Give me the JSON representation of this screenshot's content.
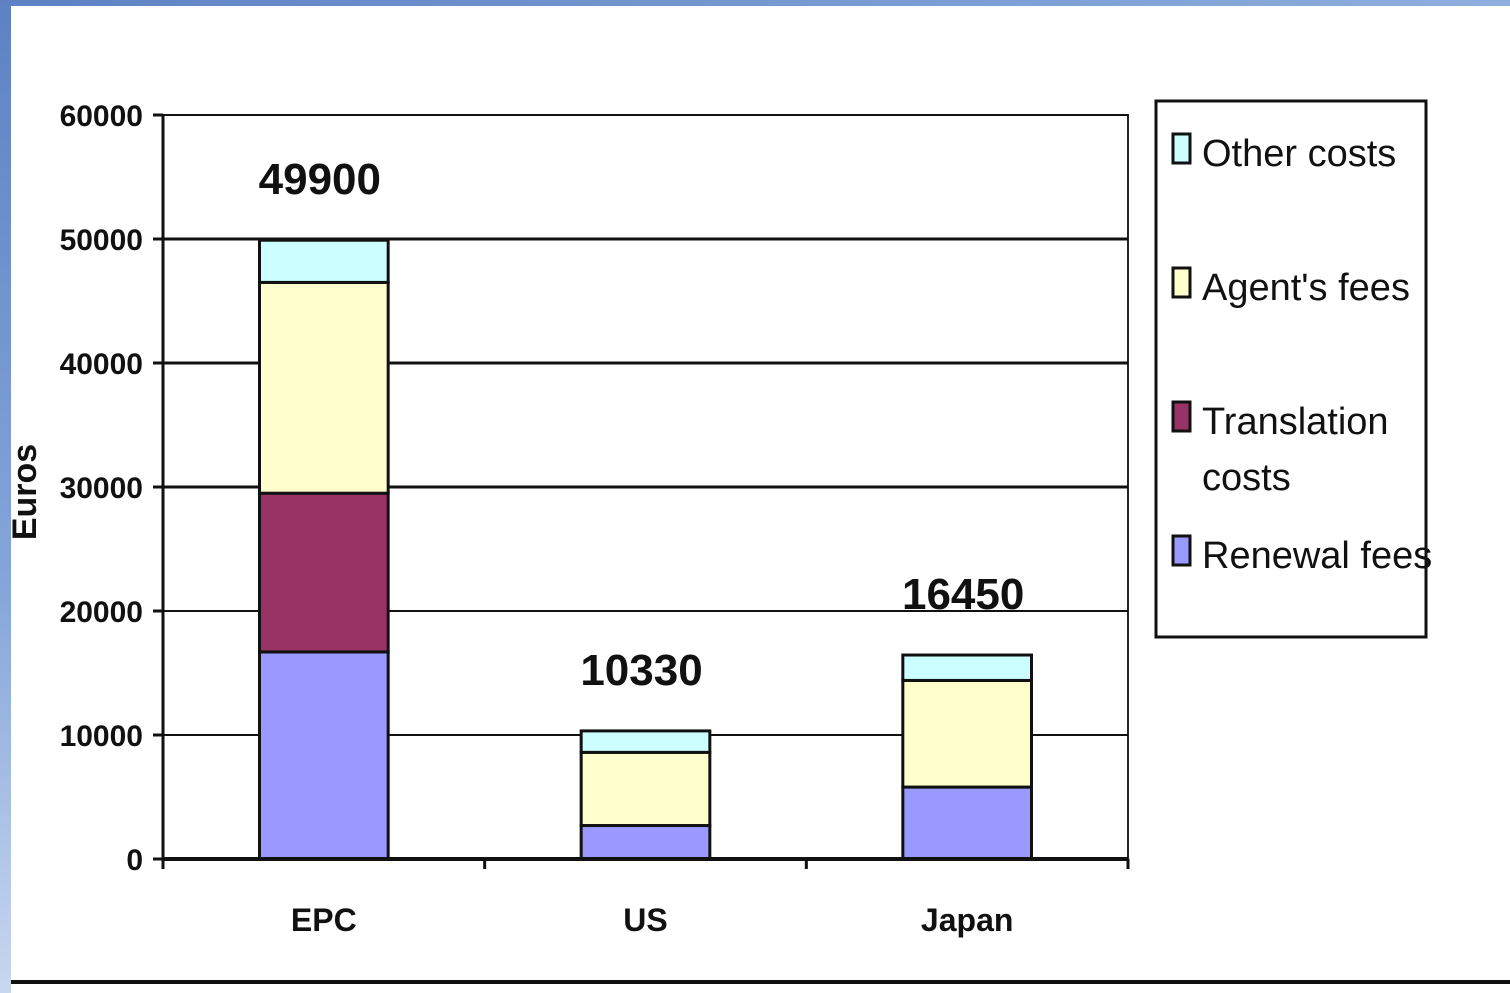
{
  "chart_data": {
    "type": "bar",
    "stacked": true,
    "title": "",
    "xlabel": "",
    "ylabel": "Euros",
    "ylim": [
      0,
      60000
    ],
    "yticks": [
      0,
      10000,
      20000,
      30000,
      40000,
      50000,
      60000
    ],
    "grid": true,
    "legend_position": "right",
    "categories": [
      "EPC",
      "US",
      "Japan"
    ],
    "totals": [
      49900,
      10330,
      16450
    ],
    "series": [
      {
        "name": "Renewal fees",
        "color": "#9999ff",
        "values": [
          16700,
          2700,
          5800
        ]
      },
      {
        "name": "Translation costs",
        "color": "#993366",
        "values": [
          12800,
          0,
          0
        ]
      },
      {
        "name": "Agent's fees",
        "color": "#ffffcc",
        "values": [
          17000,
          5900,
          8600
        ]
      },
      {
        "name": "Other costs",
        "color": "#ccffff",
        "values": [
          3400,
          1730,
          2050
        ]
      }
    ],
    "legend_order": [
      "Other costs",
      "Agent's fees",
      "Translation costs",
      "Renewal fees"
    ],
    "legend_lines": {
      "Other costs": [
        "Other costs"
      ],
      "Agent's fees": [
        "Agent's fees"
      ],
      "Translation costs": [
        "Translation",
        "costs"
      ],
      "Renewal fees": [
        "Renewal fees"
      ]
    }
  }
}
